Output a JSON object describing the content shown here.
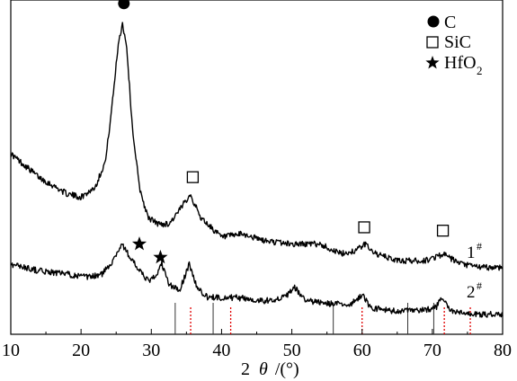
{
  "chart_data": {
    "type": "line",
    "xlabel_prefix": "2",
    "xlabel_theta": "θ",
    "xlabel_unit": "/(°)",
    "xlim": [
      10,
      80
    ],
    "xticks": [
      "10",
      "20",
      "30",
      "40",
      "50",
      "60",
      "70",
      "80"
    ],
    "y_ticks_shown": false,
    "legend": {
      "position": "top-right",
      "entries": [
        {
          "marker": "filled-circle",
          "label": "C"
        },
        {
          "marker": "open-square",
          "label": "SiC"
        },
        {
          "marker": "star",
          "label": "HfO",
          "sub": "2"
        }
      ]
    },
    "series": [
      {
        "name": "1",
        "name_sup": "#",
        "x": [
          10,
          14,
          18,
          20,
          22,
          23.5,
          24.5,
          25.3,
          25.9,
          26.5,
          27.3,
          28.3,
          29.5,
          31,
          32.5,
          34,
          35.5,
          37,
          38.5,
          40,
          43,
          46,
          50,
          54,
          57,
          59,
          60.5,
          62,
          65,
          69,
          71.5,
          74,
          77,
          80
        ],
        "y": [
          0.54,
          0.47,
          0.42,
          0.41,
          0.44,
          0.52,
          0.7,
          0.87,
          0.93,
          0.86,
          0.62,
          0.44,
          0.35,
          0.33,
          0.33,
          0.37,
          0.42,
          0.35,
          0.32,
          0.29,
          0.3,
          0.28,
          0.27,
          0.27,
          0.24,
          0.25,
          0.27,
          0.24,
          0.22,
          0.22,
          0.24,
          0.21,
          0.2,
          0.2
        ]
      },
      {
        "name": "2",
        "name_sup": "#",
        "x": [
          10,
          14,
          18,
          21,
          23,
          24.5,
          25.8,
          27,
          28.3,
          29.5,
          30.5,
          31.5,
          32.5,
          34,
          35.4,
          36.5,
          38,
          42,
          46,
          49,
          50.4,
          52,
          56,
          58.5,
          60,
          61.2,
          64,
          68,
          70.5,
          71.5,
          72.5,
          75,
          78,
          80
        ],
        "y": [
          0.21,
          0.19,
          0.18,
          0.17,
          0.18,
          0.22,
          0.27,
          0.23,
          0.19,
          0.16,
          0.17,
          0.21,
          0.15,
          0.13,
          0.21,
          0.14,
          0.11,
          0.11,
          0.1,
          0.11,
          0.14,
          0.1,
          0.09,
          0.09,
          0.12,
          0.08,
          0.07,
          0.07,
          0.08,
          0.11,
          0.07,
          0.06,
          0.06,
          0.06
        ]
      }
    ],
    "reference_solid": [
      33.4,
      38.8,
      55.9,
      66.5,
      70.2
    ],
    "reference_dashed": [
      35.6,
      41.3,
      60.0,
      71.7,
      75.4
    ],
    "markers": [
      {
        "type": "filled-circle",
        "x": 26.1,
        "y": 0.99
      },
      {
        "type": "star",
        "x": 28.3,
        "y": 0.27
      },
      {
        "type": "star",
        "x": 31.3,
        "y": 0.23
      },
      {
        "type": "open-square",
        "x": 35.9,
        "y": 0.47
      },
      {
        "type": "open-square",
        "x": 60.3,
        "y": 0.32
      },
      {
        "type": "open-square",
        "x": 71.5,
        "y": 0.31
      }
    ]
  }
}
